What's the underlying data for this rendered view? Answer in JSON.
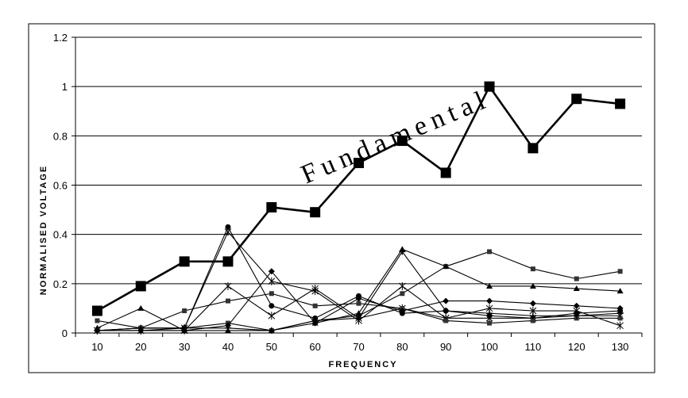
{
  "chart_data": {
    "type": "line",
    "title": "",
    "xlabel": "FREQUENCY",
    "ylabel": "NORMALISED VOLTAGE",
    "x": [
      10,
      20,
      30,
      40,
      50,
      60,
      70,
      80,
      90,
      100,
      110,
      120,
      130
    ],
    "xticks": [
      "10",
      "20",
      "30",
      "40",
      "50",
      "60",
      "70",
      "80",
      "90",
      "100",
      "110",
      "120",
      "130"
    ],
    "yticks": [
      "0",
      "0.2",
      "0.4",
      "0.6",
      "0.8",
      "1",
      "1.2"
    ],
    "ylim": [
      0,
      1.2
    ],
    "grid": "horizontal",
    "legend": "none",
    "annotation": "Fundamental",
    "series": [
      {
        "marker": "square-large",
        "bold": true,
        "values": [
          0.09,
          0.19,
          0.29,
          0.29,
          0.51,
          0.49,
          0.69,
          0.78,
          0.65,
          1.0,
          0.75,
          0.95,
          0.93
        ]
      },
      {
        "marker": "square",
        "values": [
          0.05,
          0.02,
          0.02,
          0.04,
          0.01,
          0.05,
          0.07,
          0.16,
          0.27,
          0.33,
          0.26,
          0.22,
          0.25
        ]
      },
      {
        "marker": "triangle",
        "values": [
          0.02,
          0.1,
          0.01,
          0.01,
          0.01,
          0.04,
          0.08,
          0.34,
          0.27,
          0.19,
          0.19,
          0.18,
          0.17
        ]
      },
      {
        "marker": "circle",
        "values": [
          0.01,
          0.02,
          0.02,
          0.43,
          0.11,
          0.06,
          0.15,
          0.08,
          0.09,
          0.07,
          0.06,
          0.08,
          0.09
        ]
      },
      {
        "marker": "x",
        "values": [
          0.01,
          0.01,
          0.02,
          0.41,
          0.21,
          0.17,
          0.05,
          0.19,
          0.06,
          0.1,
          0.09,
          0.09,
          0.03
        ]
      },
      {
        "marker": "x",
        "values": [
          0.01,
          0.01,
          0.01,
          0.19,
          0.07,
          0.18,
          0.06,
          0.1,
          0.06,
          0.06,
          0.06,
          0.07,
          0.07
        ]
      },
      {
        "marker": "square",
        "values": [
          0.01,
          0.02,
          0.09,
          0.13,
          0.16,
          0.11,
          0.12,
          0.1,
          0.05,
          0.04,
          0.05,
          0.06,
          0.06
        ]
      },
      {
        "marker": "diamond",
        "values": [
          0.01,
          0.01,
          0.01,
          0.03,
          0.25,
          0.04,
          0.14,
          0.09,
          0.13,
          0.13,
          0.12,
          0.11,
          0.1
        ]
      },
      {
        "marker": "plus",
        "values": [
          0.01,
          0.02,
          0.02,
          0.02,
          0.01,
          0.05,
          0.06,
          0.33,
          0.09,
          0.08,
          0.07,
          0.07,
          0.08
        ]
      }
    ]
  }
}
